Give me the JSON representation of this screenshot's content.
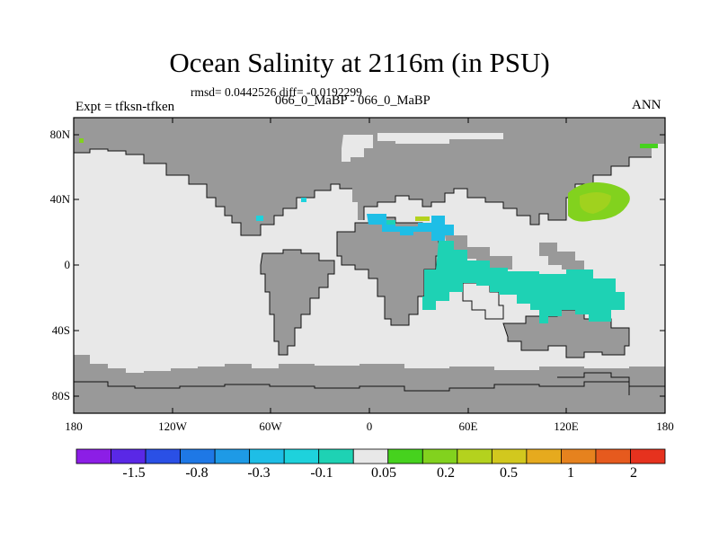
{
  "title": "Ocean Salinity at 2116m (in PSU)",
  "stats": "rmsd= 0.0442526 diff= -0.0192299",
  "subtitle": "066_0_MaBP - 066_0_MaBP",
  "left_label": "Expt = tfksn-tfken",
  "right_label": "ANN",
  "lat_ticks": [
    "80N",
    "40N",
    "0",
    "40S",
    "80S"
  ],
  "lon_ticks": [
    "180",
    "120W",
    "60W",
    "0",
    "60E",
    "120E",
    "180"
  ],
  "colorbar": {
    "colors": [
      "#8c1ee6",
      "#5a28e6",
      "#2a50e6",
      "#1e78e6",
      "#1e9ae6",
      "#1ebee6",
      "#1ed2dc",
      "#1ed2b4",
      "#e8e8e8",
      "#46d21e",
      "#82d21e",
      "#b4d21e",
      "#d2c81e",
      "#e6aa1e",
      "#e6821e",
      "#e65a1e",
      "#e6321e"
    ],
    "labels": [
      "-1.5",
      "-0.8",
      "-0.3",
      "-0.1",
      "0.05",
      "0.2",
      "0.5",
      "1",
      "2"
    ]
  },
  "colors": {
    "land": "#999999",
    "ocean_zero": "#e8e8e8",
    "anomaly_teal": "#1ed2b4",
    "anomaly_cyan": "#1ebee6",
    "anomaly_green": "#82d21e",
    "anomaly_yellowgreen": "#b4d21e"
  }
}
